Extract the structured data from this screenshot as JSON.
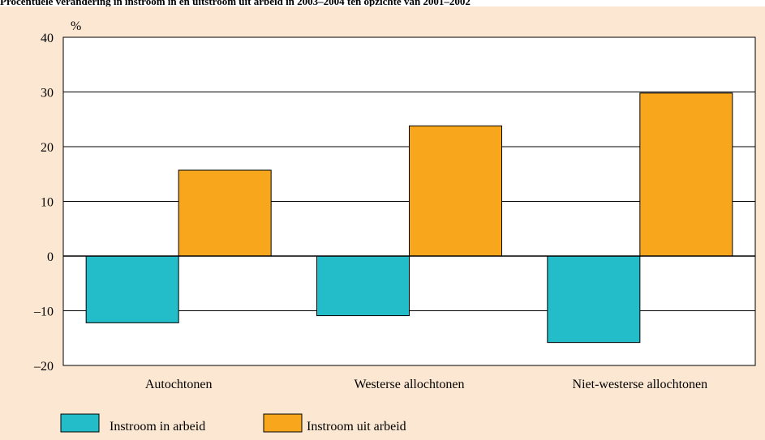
{
  "title": "Procentuele verandering in instroom in en uitstroom uit arbeid in 2003–2004 ten opzichte van 2001–2002",
  "colors": {
    "background": "#fce8d2",
    "plot_background": "#ffffff",
    "series_in": "#22bdc9",
    "series_out": "#f8a71d"
  },
  "chart_data": {
    "type": "bar",
    "title": "Procentuele verandering in instroom in en uitstroom uit arbeid in 2003–2004 ten opzichte van 2001–2002",
    "ylabel": "%",
    "xlabel": "",
    "ylim": [
      -20,
      40
    ],
    "yticks": [
      40,
      30,
      20,
      10,
      0,
      -10,
      -20
    ],
    "ytick_labels": [
      "40",
      "30",
      "20",
      "10",
      "0",
      "–10",
      "–20"
    ],
    "grid": true,
    "legend_position": "bottom-left",
    "categories": [
      "Autochtonen",
      "Westerse allochtonen",
      "Niet-westerse allochtonen"
    ],
    "series": [
      {
        "name": "Instroom in arbeid",
        "values": [
          -12.2,
          -10.9,
          -15.8
        ]
      },
      {
        "name": "Instroom uit arbeid",
        "values": [
          15.7,
          23.8,
          29.8
        ]
      }
    ]
  }
}
